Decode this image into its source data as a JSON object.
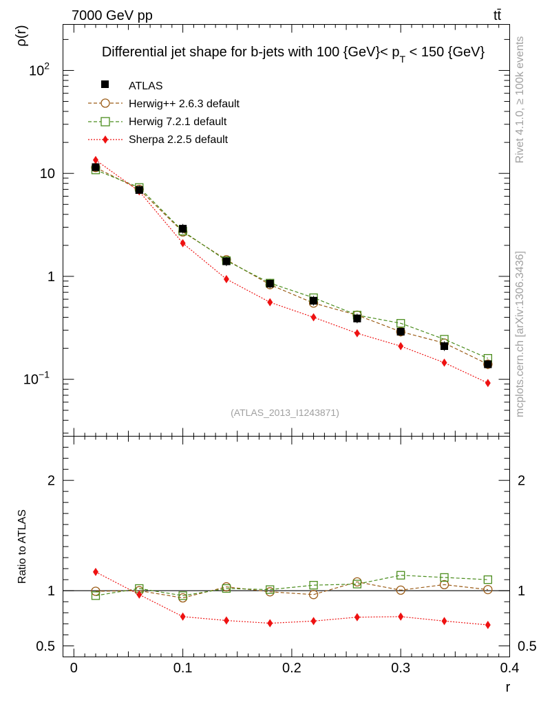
{
  "header": {
    "left_label": "7000 GeV pp",
    "right_label": "tt̄"
  },
  "side_labels": {
    "rivet": "Rivet 4.1.0, ≥ 100k events",
    "mcplots": "mcplots.cern.ch [arXiv:1306.3436]"
  },
  "watermark": "(ATLAS_2013_I1243871)",
  "chart_data": [
    {
      "type": "scatter",
      "panel": "main",
      "title": "Differential jet shape for b-jets with 100 {GeV}< p_T < 150 {GeV}",
      "title_parts": {
        "main": "Differential jet shape for b-jets with 100 {GeV}< p",
        "sub": "T",
        "tail": " < 150 {GeV}"
      },
      "ylabel": "ρ(r)",
      "xlabel": "",
      "yscale": "log",
      "ylim": [
        0.028,
        280
      ],
      "xlim": [
        -0.01,
        0.4
      ],
      "x": [
        0.02,
        0.06,
        0.1,
        0.14,
        0.18,
        0.22,
        0.26,
        0.3,
        0.34,
        0.38
      ],
      "ytick_labels": [
        {
          "value": 0.1,
          "base": "10",
          "exp": "−1"
        },
        {
          "value": 1,
          "base": "1",
          "exp": ""
        },
        {
          "value": 10,
          "base": "10",
          "exp": ""
        },
        {
          "value": 100,
          "base": "10",
          "exp": "2"
        }
      ],
      "series": [
        {
          "name": "ATLAS",
          "style": "data",
          "color": "#000000",
          "values": [
            11.5,
            6.9,
            2.9,
            1.4,
            0.85,
            0.58,
            0.39,
            0.29,
            0.21,
            0.14
          ]
        },
        {
          "name": "Herwig++ 2.6.3 default",
          "style": "circle",
          "color": "#9a5a14",
          "values": [
            11.4,
            7.0,
            2.7,
            1.45,
            0.83,
            0.55,
            0.42,
            0.29,
            0.225,
            0.14
          ]
        },
        {
          "name": "Herwig 7.2.1 default",
          "style": "square",
          "color": "#4a8c1c",
          "values": [
            10.8,
            7.3,
            2.75,
            1.42,
            0.86,
            0.62,
            0.42,
            0.35,
            0.245,
            0.16
          ]
        },
        {
          "name": "Sherpa 2.2.5 default",
          "style": "diamond",
          "color": "#ee1111",
          "values": [
            13.5,
            6.7,
            2.1,
            0.94,
            0.56,
            0.4,
            0.28,
            0.21,
            0.145,
            0.092
          ]
        }
      ]
    },
    {
      "type": "scatter",
      "panel": "ratio",
      "title": "",
      "ylabel": "Ratio to ATLAS",
      "xlabel": "r",
      "ylim": [
        0.4,
        2.4
      ],
      "xlim": [
        -0.01,
        0.4
      ],
      "x": [
        0.02,
        0.06,
        0.1,
        0.14,
        0.18,
        0.22,
        0.26,
        0.3,
        0.34,
        0.38
      ],
      "xtick_labels": [
        "0",
        "0.1",
        "0.2",
        "0.3",
        "0.4"
      ],
      "ytick_labels": [
        "0.5",
        "1",
        "2"
      ],
      "series": [
        {
          "name": "Herwig++ 2.6.3 default",
          "style": "circle",
          "color": "#9a5a14",
          "values": [
            0.995,
            1.0,
            0.935,
            1.035,
            0.99,
            0.965,
            1.08,
            1.005,
            1.055,
            1.01
          ]
        },
        {
          "name": "Herwig 7.2.1 default",
          "style": "square",
          "color": "#4a8c1c",
          "values": [
            0.955,
            1.02,
            0.955,
            1.02,
            1.01,
            1.05,
            1.06,
            1.14,
            1.12,
            1.1
          ]
        },
        {
          "name": "Sherpa 2.2.5 default",
          "style": "diamond",
          "color": "#ee1111",
          "values": [
            1.17,
            0.965,
            0.765,
            0.73,
            0.705,
            0.725,
            0.76,
            0.765,
            0.725,
            0.69
          ]
        }
      ]
    }
  ]
}
